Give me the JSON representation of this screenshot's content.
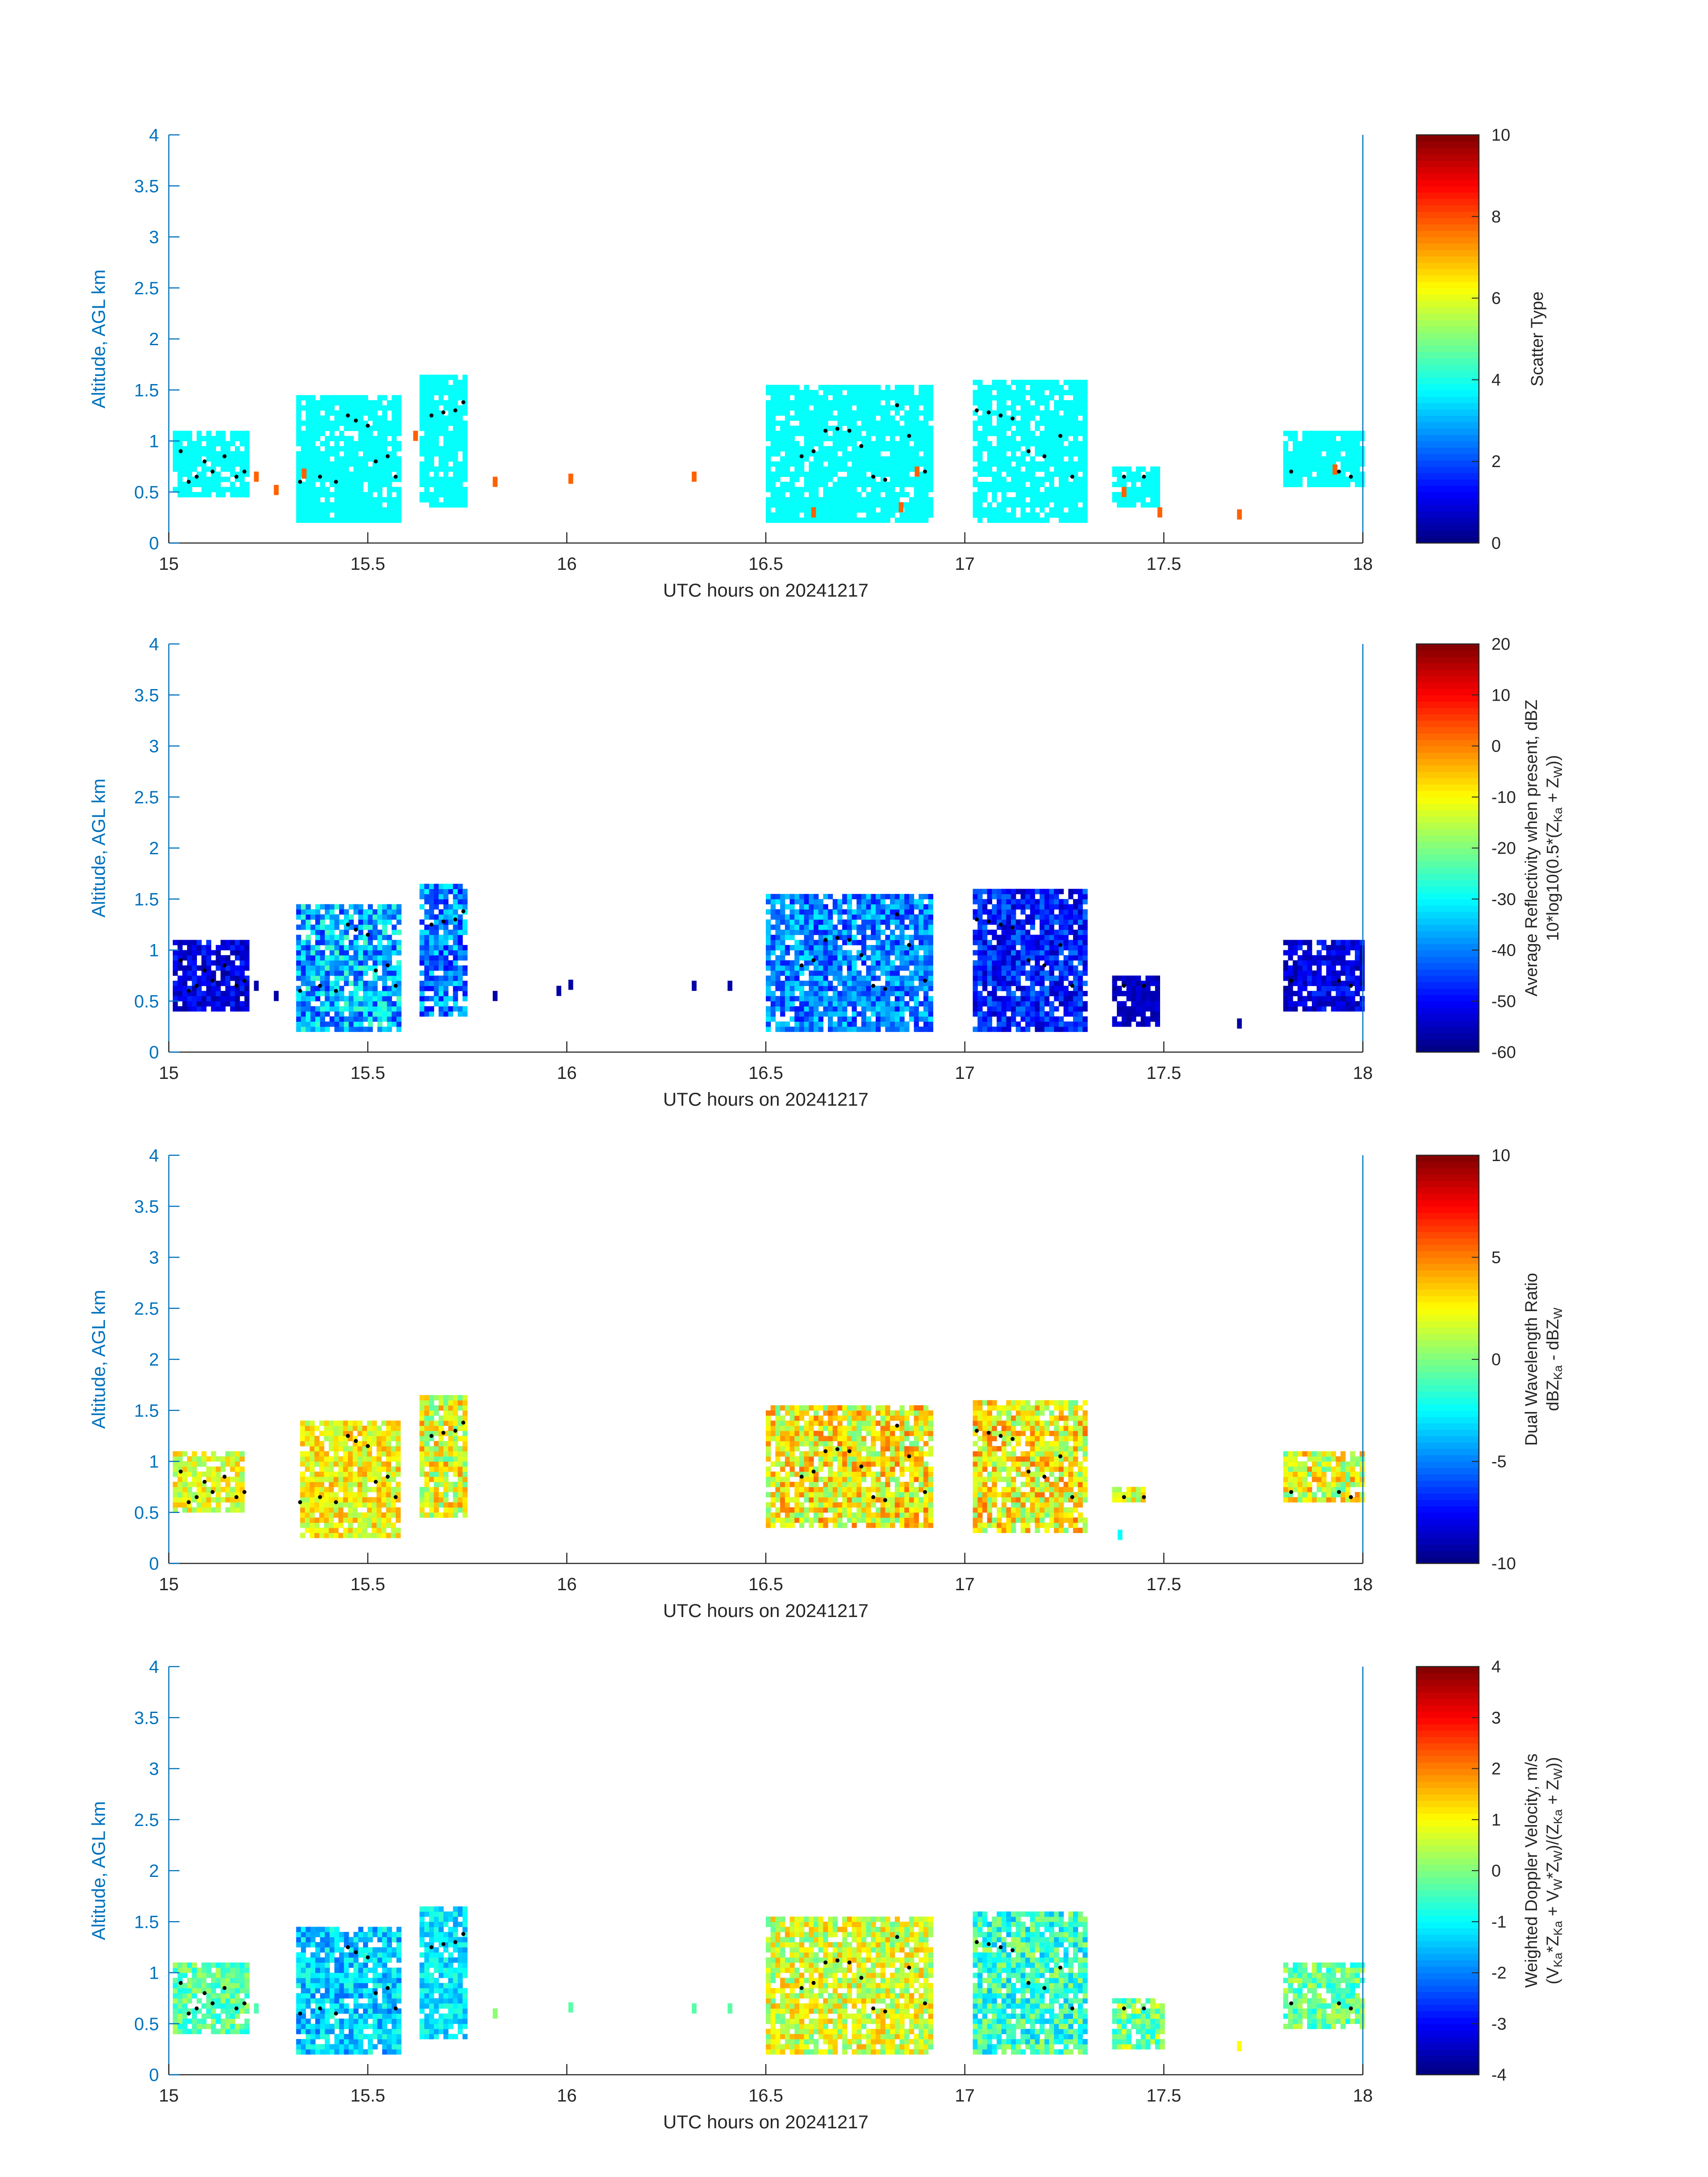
{
  "chart_data": [
    {
      "type": "heatmap",
      "variable": "scatter_type",
      "xlabel": "UTC hours on 20241217",
      "ylabel": "Altitude, AGL km",
      "xlim": [
        15,
        18
      ],
      "ylim": [
        0,
        4
      ],
      "xticks": [
        "15",
        "15.5",
        "16",
        "16.5",
        "17",
        "17.5",
        "18"
      ],
      "yticks": [
        "0",
        "0.5",
        "1",
        "1.5",
        "2",
        "2.5",
        "3",
        "3.5",
        "4"
      ],
      "colorbar": {
        "label_lines": [
          "Scatter Type"
        ],
        "range": [
          0,
          10
        ],
        "ticks": [
          "0",
          "2",
          "4",
          "6",
          "8",
          "10"
        ],
        "colormap": "jet"
      },
      "cells": [
        {
          "x0": 15.01,
          "x1": 15.2,
          "ylo": 0.45,
          "yhi": 1.1,
          "v": 3.8,
          "var": 0
        },
        {
          "x0": 15.32,
          "x1": 15.58,
          "ylo": 0.2,
          "yhi": 1.45,
          "v": 3.8,
          "var": 0
        },
        {
          "x0": 15.63,
          "x1": 15.75,
          "ylo": 0.35,
          "yhi": 1.65,
          "v": 3.8,
          "var": 0
        },
        {
          "x0": 16.5,
          "x1": 16.92,
          "ylo": 0.2,
          "yhi": 1.55,
          "v": 3.8,
          "var": 0
        },
        {
          "x0": 17.02,
          "x1": 17.3,
          "ylo": 0.2,
          "yhi": 1.6,
          "v": 3.8,
          "var": 0
        },
        {
          "x0": 17.37,
          "x1": 17.48,
          "ylo": 0.35,
          "yhi": 0.75,
          "v": 3.8,
          "var": 0
        },
        {
          "x0": 17.8,
          "x1": 18.0,
          "ylo": 0.55,
          "yhi": 1.1,
          "v": 3.8,
          "var": 0
        }
      ],
      "specks": [
        {
          "x": 15.22,
          "y": 0.65,
          "v": 7.8
        },
        {
          "x": 15.27,
          "y": 0.52,
          "v": 7.8
        },
        {
          "x": 15.34,
          "y": 0.68,
          "v": 7.8
        },
        {
          "x": 15.62,
          "y": 1.05,
          "v": 7.8
        },
        {
          "x": 15.82,
          "y": 0.6,
          "v": 7.8
        },
        {
          "x": 16.01,
          "y": 0.63,
          "v": 7.8
        },
        {
          "x": 16.32,
          "y": 0.65,
          "v": 7.8
        },
        {
          "x": 16.62,
          "y": 0.3,
          "v": 7.8
        },
        {
          "x": 16.84,
          "y": 0.35,
          "v": 7.8
        },
        {
          "x": 16.88,
          "y": 0.7,
          "v": 7.8
        },
        {
          "x": 17.4,
          "y": 0.5,
          "v": 7.8
        },
        {
          "x": 17.49,
          "y": 0.3,
          "v": 7.8
        },
        {
          "x": 17.69,
          "y": 0.28,
          "v": 7.8
        },
        {
          "x": 17.93,
          "y": 0.72,
          "v": 7.8
        }
      ]
    },
    {
      "type": "heatmap",
      "variable": "average_reflectivity_dbz",
      "xlabel": "UTC hours on 20241217",
      "ylabel": "Altitude, AGL km",
      "xlim": [
        15,
        18
      ],
      "ylim": [
        0,
        4
      ],
      "xticks": [
        "15",
        "15.5",
        "16",
        "16.5",
        "17",
        "17.5",
        "18"
      ],
      "yticks": [
        "0",
        "0.5",
        "1",
        "1.5",
        "2",
        "2.5",
        "3",
        "3.5",
        "4"
      ],
      "colorbar": {
        "label_lines": [
          "Average Reflectivity when present, dBZ",
          "10*log10(0.5*(Z",
          "Ka",
          " + Z",
          "W",
          "))"
        ],
        "range": [
          -60,
          20
        ],
        "ticks": [
          "-60",
          "-50",
          "-40",
          "-30",
          "-20",
          "-10",
          "0",
          "10",
          "20"
        ],
        "colormap": "jet"
      },
      "cells": [
        {
          "x0": 15.01,
          "x1": 15.2,
          "ylo": 0.4,
          "yhi": 1.1,
          "v": -52,
          "var": 6
        },
        {
          "x0": 15.32,
          "x1": 15.58,
          "ylo": 0.2,
          "yhi": 1.45,
          "v": -36,
          "var": 12
        },
        {
          "x0": 15.63,
          "x1": 15.75,
          "ylo": 0.35,
          "yhi": 1.65,
          "v": -40,
          "var": 10
        },
        {
          "x0": 16.5,
          "x1": 16.92,
          "ylo": 0.2,
          "yhi": 1.55,
          "v": -40,
          "var": 9
        },
        {
          "x0": 17.02,
          "x1": 17.3,
          "ylo": 0.2,
          "yhi": 1.6,
          "v": -48,
          "var": 8
        },
        {
          "x0": 17.37,
          "x1": 17.48,
          "ylo": 0.25,
          "yhi": 0.75,
          "v": -55,
          "var": 3
        },
        {
          "x0": 17.8,
          "x1": 18.0,
          "ylo": 0.4,
          "yhi": 1.1,
          "v": -52,
          "var": 6
        }
      ],
      "specks": [
        {
          "x": 15.22,
          "y": 0.65,
          "v": -57
        },
        {
          "x": 15.27,
          "y": 0.55,
          "v": -57
        },
        {
          "x": 15.82,
          "y": 0.55,
          "v": -57
        },
        {
          "x": 15.98,
          "y": 0.6,
          "v": -57
        },
        {
          "x": 16.01,
          "y": 0.66,
          "v": -57
        },
        {
          "x": 16.32,
          "y": 0.65,
          "v": -57
        },
        {
          "x": 16.41,
          "y": 0.65,
          "v": -57
        },
        {
          "x": 17.69,
          "y": 0.28,
          "v": -57
        }
      ]
    },
    {
      "type": "heatmap",
      "variable": "dual_wavelength_ratio",
      "xlabel": "UTC hours on 20241217",
      "ylabel": "Altitude, AGL km",
      "xlim": [
        15,
        18
      ],
      "ylim": [
        0,
        4
      ],
      "xticks": [
        "15",
        "15.5",
        "16",
        "16.5",
        "17",
        "17.5",
        "18"
      ],
      "yticks": [
        "0",
        "0.5",
        "1",
        "1.5",
        "2",
        "2.5",
        "3",
        "3.5",
        "4"
      ],
      "colorbar": {
        "label_lines": [
          "Dual Wavelength Ratio",
          "dBZ",
          "Ka",
          " - dBZ",
          "W"
        ],
        "range": [
          -10,
          10
        ],
        "ticks": [
          "-10",
          "-5",
          "0",
          "5",
          "10"
        ],
        "colormap": "jet"
      },
      "cells": [
        {
          "x0": 15.01,
          "x1": 15.18,
          "ylo": 0.5,
          "yhi": 1.1,
          "v": 2,
          "var": 2
        },
        {
          "x0": 15.33,
          "x1": 15.58,
          "ylo": 0.25,
          "yhi": 1.4,
          "v": 2.5,
          "var": 2
        },
        {
          "x0": 15.63,
          "x1": 15.75,
          "ylo": 0.45,
          "yhi": 1.65,
          "v": 2,
          "var": 3
        },
        {
          "x0": 16.5,
          "x1": 16.92,
          "ylo": 0.35,
          "yhi": 1.55,
          "v": 2.5,
          "var": 3
        },
        {
          "x0": 17.02,
          "x1": 17.3,
          "ylo": 0.3,
          "yhi": 1.6,
          "v": 2.5,
          "var": 3
        },
        {
          "x0": 17.37,
          "x1": 17.45,
          "ylo": 0.6,
          "yhi": 0.75,
          "v": 2,
          "var": 2
        },
        {
          "x0": 17.8,
          "x1": 18.0,
          "ylo": 0.6,
          "yhi": 1.1,
          "v": 2,
          "var": 3
        }
      ],
      "specks": [
        {
          "x": 17.39,
          "y": 0.28,
          "v": -2.5
        }
      ]
    },
    {
      "type": "heatmap",
      "variable": "weighted_doppler_velocity",
      "xlabel": "UTC hours on 20241217",
      "ylabel": "Altitude, AGL km",
      "xlim": [
        15,
        18
      ],
      "ylim": [
        0,
        4
      ],
      "xticks": [
        "15",
        "15.5",
        "16",
        "16.5",
        "17",
        "17.5",
        "18"
      ],
      "yticks": [
        "0",
        "0.5",
        "1",
        "1.5",
        "2",
        "2.5",
        "3",
        "3.5",
        "4"
      ],
      "colorbar": {
        "label_lines": [
          "Weighted Doppler Velocity, m/s",
          "(V",
          "Ka",
          "*Z",
          "Ka",
          " + V",
          "W",
          "*Z",
          "W",
          ")/(Z",
          "Ka",
          " + Z",
          "W",
          "))"
        ],
        "range": [
          -4,
          4
        ],
        "ticks": [
          "-4",
          "-3",
          "-2",
          "-1",
          "0",
          "1",
          "2",
          "3",
          "4"
        ],
        "colormap": "jet"
      },
      "cells": [
        {
          "x0": 15.01,
          "x1": 15.2,
          "ylo": 0.4,
          "yhi": 1.1,
          "v": -0.3,
          "var": 0.7
        },
        {
          "x0": 15.32,
          "x1": 15.58,
          "ylo": 0.2,
          "yhi": 1.45,
          "v": -1.4,
          "var": 0.8
        },
        {
          "x0": 15.63,
          "x1": 15.75,
          "ylo": 0.35,
          "yhi": 1.65,
          "v": -1.2,
          "var": 0.6
        },
        {
          "x0": 16.5,
          "x1": 16.92,
          "ylo": 0.2,
          "yhi": 1.55,
          "v": 0.7,
          "var": 1.0
        },
        {
          "x0": 17.02,
          "x1": 17.3,
          "ylo": 0.2,
          "yhi": 1.6,
          "v": -0.6,
          "var": 1.0
        },
        {
          "x0": 17.37,
          "x1": 17.5,
          "ylo": 0.25,
          "yhi": 0.75,
          "v": 0.0,
          "var": 1.0
        },
        {
          "x0": 17.8,
          "x1": 18.0,
          "ylo": 0.45,
          "yhi": 1.1,
          "v": -0.2,
          "var": 0.8
        }
      ],
      "specks": [
        {
          "x": 15.22,
          "y": 0.65,
          "v": -0.4
        },
        {
          "x": 15.82,
          "y": 0.6,
          "v": 0.1
        },
        {
          "x": 16.01,
          "y": 0.66,
          "v": -0.3
        },
        {
          "x": 16.32,
          "y": 0.65,
          "v": -0.3
        },
        {
          "x": 16.41,
          "y": 0.65,
          "v": -0.3
        },
        {
          "x": 17.69,
          "y": 0.28,
          "v": 1.0
        }
      ]
    }
  ],
  "trace_dots": [
    {
      "x": 15.03,
      "y": 0.9
    },
    {
      "x": 15.05,
      "y": 0.6
    },
    {
      "x": 15.07,
      "y": 0.65
    },
    {
      "x": 15.09,
      "y": 0.8
    },
    {
      "x": 15.11,
      "y": 0.7
    },
    {
      "x": 15.14,
      "y": 0.85
    },
    {
      "x": 15.17,
      "y": 0.65
    },
    {
      "x": 15.19,
      "y": 0.7
    },
    {
      "x": 15.33,
      "y": 0.6
    },
    {
      "x": 15.38,
      "y": 0.65
    },
    {
      "x": 15.42,
      "y": 0.6
    },
    {
      "x": 15.45,
      "y": 1.25
    },
    {
      "x": 15.47,
      "y": 1.2
    },
    {
      "x": 15.5,
      "y": 1.15
    },
    {
      "x": 15.52,
      "y": 0.8
    },
    {
      "x": 15.55,
      "y": 0.85
    },
    {
      "x": 15.57,
      "y": 0.65
    },
    {
      "x": 15.66,
      "y": 1.25
    },
    {
      "x": 15.69,
      "y": 1.28
    },
    {
      "x": 15.72,
      "y": 1.3
    },
    {
      "x": 15.74,
      "y": 1.38
    },
    {
      "x": 16.59,
      "y": 0.85
    },
    {
      "x": 16.62,
      "y": 0.9
    },
    {
      "x": 16.65,
      "y": 1.1
    },
    {
      "x": 16.68,
      "y": 1.12
    },
    {
      "x": 16.71,
      "y": 1.1
    },
    {
      "x": 16.74,
      "y": 0.95
    },
    {
      "x": 16.77,
      "y": 0.65
    },
    {
      "x": 16.8,
      "y": 0.62
    },
    {
      "x": 16.83,
      "y": 1.35
    },
    {
      "x": 16.86,
      "y": 1.05
    },
    {
      "x": 16.9,
      "y": 0.7
    },
    {
      "x": 17.03,
      "y": 1.3
    },
    {
      "x": 17.06,
      "y": 1.28
    },
    {
      "x": 17.09,
      "y": 1.25
    },
    {
      "x": 17.12,
      "y": 1.22
    },
    {
      "x": 17.16,
      "y": 0.9
    },
    {
      "x": 17.2,
      "y": 0.85
    },
    {
      "x": 17.24,
      "y": 1.05
    },
    {
      "x": 17.27,
      "y": 0.65
    },
    {
      "x": 17.4,
      "y": 0.65
    },
    {
      "x": 17.45,
      "y": 0.65
    },
    {
      "x": 17.82,
      "y": 0.7
    },
    {
      "x": 17.94,
      "y": 0.7
    },
    {
      "x": 17.97,
      "y": 0.65
    }
  ]
}
